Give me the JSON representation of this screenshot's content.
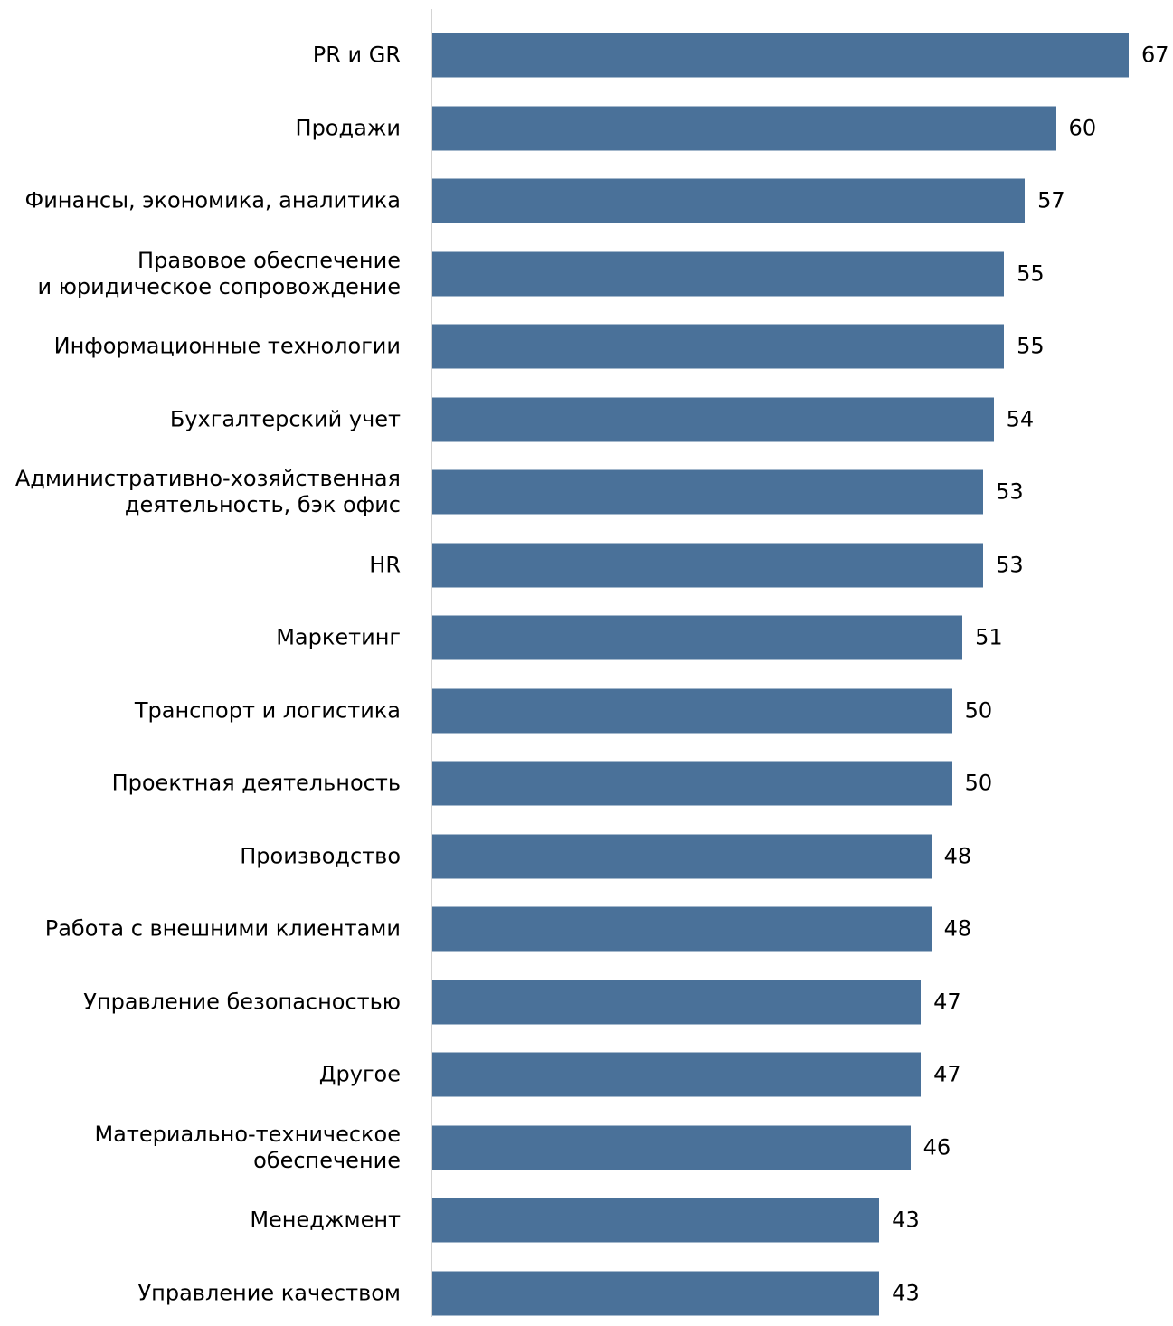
{
  "colors": {
    "bar": "#4a7199",
    "axis": "#d4d4d4",
    "text": "#000000"
  },
  "chart_data": {
    "type": "bar",
    "orientation": "horizontal",
    "categories": [
      "PR и GR",
      "Продажи",
      "Финансы, экономика, аналитика",
      "Правовое обеспечение\nи юридическое сопровождение",
      "Информационные технологии",
      "Бухгалтерский учет",
      "Административно-хозяйственная\nдеятельность, бэк офис",
      "HR",
      "Маркетинг",
      "Транспорт и логистика",
      "Проектная деятельность",
      "Производство",
      "Работа с внешними клиентами",
      "Управление безопасностью",
      "Другое",
      "Материально-техническое\nобеспечение",
      "Менеджмент",
      "Управление качеством"
    ],
    "values": [
      67,
      60,
      57,
      55,
      55,
      54,
      53,
      53,
      51,
      50,
      50,
      48,
      48,
      47,
      47,
      46,
      43,
      43
    ],
    "value_labels": [
      "67",
      "60",
      "57",
      "55",
      "55",
      "54",
      "53",
      "53",
      "51",
      "50",
      "50",
      "48",
      "48",
      "47",
      "47",
      "46",
      "43",
      "43"
    ],
    "xlim": [
      0,
      67
    ],
    "grid": false,
    "legend": "none"
  }
}
